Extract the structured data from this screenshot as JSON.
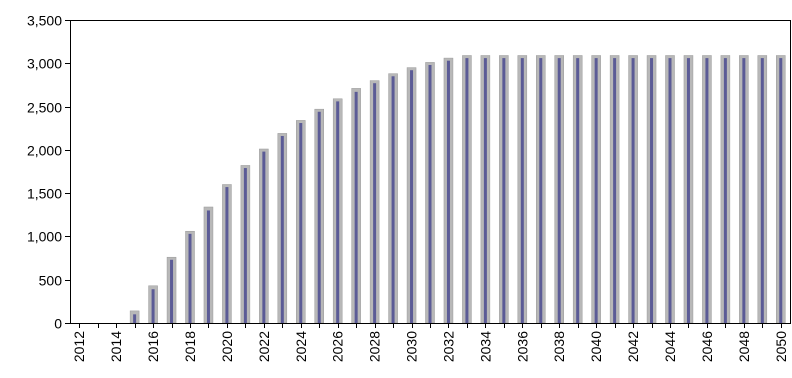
{
  "chart_data": {
    "type": "bar",
    "title": "",
    "xlabel": "",
    "ylabel": "",
    "ylim": [
      0,
      3500
    ],
    "yticks": [
      0,
      500,
      1000,
      1500,
      2000,
      2500,
      3000,
      3500
    ],
    "ytick_labels": [
      "0",
      "500",
      "1,000",
      "1,500",
      "2,000",
      "2,500",
      "3,000",
      "3,500"
    ],
    "grid": false,
    "legend": "none",
    "categories": [
      "2012",
      "2013",
      "2014",
      "2015",
      "2016",
      "2017",
      "2018",
      "2019",
      "2020",
      "2021",
      "2022",
      "2023",
      "2024",
      "2025",
      "2026",
      "2027",
      "2028",
      "2029",
      "2030",
      "2031",
      "2032",
      "2033",
      "2034",
      "2035",
      "2036",
      "2037",
      "2038",
      "2039",
      "2040",
      "2041",
      "2042",
      "2043",
      "2044",
      "2045",
      "2046",
      "2047",
      "2048",
      "2049",
      "2050"
    ],
    "xtick_labels": [
      "2012",
      "2014",
      "2016",
      "2018",
      "2020",
      "2022",
      "2024",
      "2026",
      "2028",
      "2030",
      "2032",
      "2034",
      "2036",
      "2038",
      "2040",
      "2042",
      "2044",
      "2046",
      "2048",
      "2050"
    ],
    "series": [
      {
        "name": "",
        "type": "bar",
        "color": "#B8B8B8",
        "values": [
          0,
          0,
          0,
          140,
          430,
          760,
          1060,
          1340,
          1600,
          1820,
          2010,
          2190,
          2340,
          2470,
          2590,
          2710,
          2800,
          2880,
          2950,
          3010,
          3060,
          3090,
          3090,
          3090,
          3090,
          3090,
          3090,
          3090,
          3090,
          3090,
          3090,
          3090,
          3090,
          3090,
          3090,
          3090,
          3090,
          3090,
          3090
        ]
      },
      {
        "name": "",
        "type": "bar",
        "color": "#5B5B96",
        "values": [
          0,
          0,
          0,
          100,
          390,
          730,
          1030,
          1300,
          1570,
          1790,
          1980,
          2160,
          2310,
          2440,
          2560,
          2670,
          2770,
          2850,
          2920,
          2980,
          3030,
          3060,
          3060,
          3060,
          3060,
          3060,
          3060,
          3060,
          3060,
          3060,
          3060,
          3060,
          3060,
          3060,
          3060,
          3060,
          3060,
          3060,
          3060
        ]
      }
    ]
  }
}
